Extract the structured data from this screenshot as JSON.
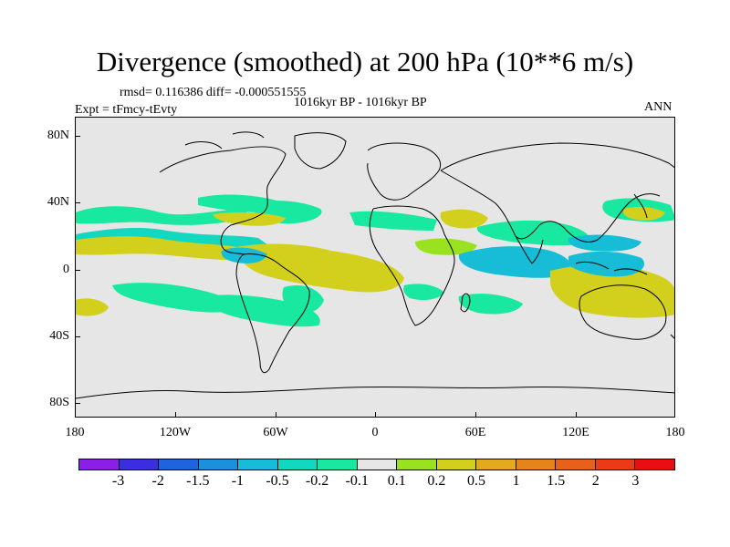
{
  "title": "Divergence (smoothed) at 200 hPa (10**6 m/s)",
  "stats": "rmsd= 0.116386 diff= -0.000551555",
  "experiment": "Expt = tFmcy-tEvty",
  "period": "1016kyr BP - 1016kyr BP",
  "season": "ANN",
  "y_ticks": [
    "80N",
    "40N",
    "0",
    "40S",
    "80S"
  ],
  "x_ticks": [
    "180",
    "120W",
    "60W",
    "0",
    "60E",
    "120E",
    "180"
  ],
  "colorbar": {
    "labels": [
      "-3",
      "-2",
      "-1.5",
      "-1",
      "-0.5",
      "-0.2",
      "-0.1",
      "0.1",
      "0.2",
      "0.5",
      "1",
      "1.5",
      "2",
      "3"
    ],
    "colors": [
      "#8a1fe6",
      "#3a2ee0",
      "#1f63df",
      "#1b90dd",
      "#17bdd6",
      "#12d8c0",
      "#19e8a0",
      "#e6e6e6",
      "#9ae21f",
      "#d2cf1d",
      "#e2aa1c",
      "#e6841b",
      "#e8601a",
      "#ea3a18",
      "#ea0e12"
    ]
  },
  "colors": {
    "land_bg": "#e6e6e6",
    "green": "#19e8a0",
    "teal": "#12d8c0",
    "cyan": "#17bdd6",
    "lime": "#9ae21f",
    "olive": "#d2cf1d"
  }
}
